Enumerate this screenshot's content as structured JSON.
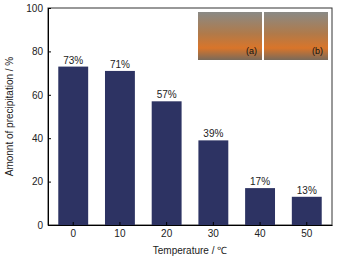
{
  "chart_data": {
    "type": "bar",
    "x_label": "Temperature / ℃",
    "y_label": "Amonnt of precipitation / %",
    "categories": [
      "0",
      "10",
      "20",
      "30",
      "40",
      "50"
    ],
    "values": [
      73,
      71,
      57,
      39,
      17,
      13
    ],
    "value_labels": [
      "73%",
      "71%",
      "57%",
      "39%",
      "17%",
      "13%"
    ],
    "data_labels": true,
    "color": "#2d3363",
    "ylim": [
      0,
      100
    ],
    "yticks": [
      0,
      20,
      40,
      60,
      80,
      100
    ],
    "grid": false,
    "annotations": [
      "(a)",
      "(b)"
    ]
  }
}
